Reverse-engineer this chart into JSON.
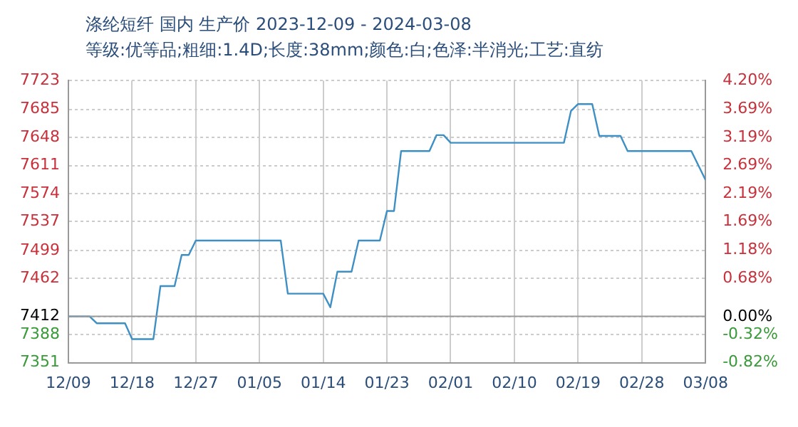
{
  "chart_data": {
    "type": "line",
    "title": "涤纶短纤 国内 生产价 2023-12-09 - 2024-03-08",
    "subtitle": "等级:优等品;粗细:1.4D;长度:38mm;颜色:白;色泽:半消光;工艺:直纺",
    "x": [
      "2023-12-09",
      "2023-12-12",
      "2023-12-13",
      "2023-12-17",
      "2023-12-18",
      "2023-12-21",
      "2023-12-22",
      "2023-12-24",
      "2023-12-25",
      "2023-12-26",
      "2023-12-27",
      "2024-01-08",
      "2024-01-09",
      "2024-01-14",
      "2024-01-15",
      "2024-01-16",
      "2024-01-18",
      "2024-01-19",
      "2024-01-22",
      "2024-01-23",
      "2024-01-24",
      "2024-01-25",
      "2024-01-29",
      "2024-01-30",
      "2024-01-31",
      "2024-02-01",
      "2024-02-17",
      "2024-02-18",
      "2024-02-19",
      "2024-02-21",
      "2024-02-22",
      "2024-02-25",
      "2024-02-26",
      "2024-03-06",
      "2024-03-08"
    ],
    "series": [
      {
        "color": "#3d8fc4",
        "values": [
          7412,
          7412,
          7403,
          7403,
          7382,
          7382,
          7452,
          7452,
          7493,
          7493,
          7512,
          7512,
          7442,
          7442,
          7424,
          7471,
          7471,
          7512,
          7512,
          7551,
          7551,
          7630,
          7630,
          7651,
          7651,
          7641,
          7641,
          7683,
          7692,
          7692,
          7650,
          7650,
          7630,
          7630,
          7592
        ]
      }
    ],
    "xlim": [
      "2023-12-09",
      "2024-03-08"
    ],
    "xticks": [
      {
        "value": "2023-12-09",
        "label": "12/09"
      },
      {
        "value": "2023-12-18",
        "label": "12/18"
      },
      {
        "value": "2023-12-27",
        "label": "12/27"
      },
      {
        "value": "2024-01-05",
        "label": "01/05"
      },
      {
        "value": "2024-01-14",
        "label": "01/14"
      },
      {
        "value": "2024-01-23",
        "label": "01/23"
      },
      {
        "value": "2024-02-01",
        "label": "02/01"
      },
      {
        "value": "2024-02-10",
        "label": "02/10"
      },
      {
        "value": "2024-02-19",
        "label": "02/19"
      },
      {
        "value": "2024-02-28",
        "label": "02/28"
      },
      {
        "value": "2024-03-08",
        "label": "03/08"
      }
    ],
    "ylim": [
      7351,
      7723
    ],
    "yticks": [
      7351,
      7388,
      7412,
      7462,
      7499,
      7537,
      7574,
      7611,
      7648,
      7685,
      7723
    ],
    "y2lim": [
      -0.82,
      4.2
    ],
    "y2ticks": [
      {
        "value": -0.82,
        "label": "-0.82%"
      },
      {
        "value": -0.32,
        "label": "-0.32%"
      },
      {
        "value": 0,
        "label": "0.00%"
      },
      {
        "value": 0.68,
        "label": "0.68%"
      },
      {
        "value": 1.18,
        "label": "1.18%"
      },
      {
        "value": 1.69,
        "label": "1.69%"
      },
      {
        "value": 2.19,
        "label": "2.19%"
      },
      {
        "value": 2.69,
        "label": "2.69%"
      },
      {
        "value": 3.19,
        "label": "3.19%"
      },
      {
        "value": 3.69,
        "label": "3.69%"
      },
      {
        "value": 4.2,
        "label": "4.20%"
      }
    ],
    "ref_lines": [
      {
        "axis": "y",
        "value": 7412,
        "color": "#999999"
      }
    ],
    "grid": true,
    "legend": false,
    "marker": "none",
    "line_style": "solid"
  }
}
